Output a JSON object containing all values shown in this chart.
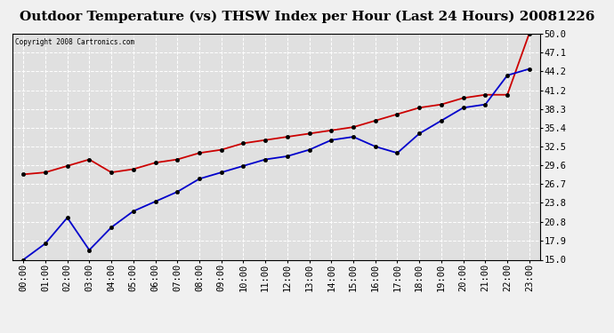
{
  "title": "Outdoor Temperature (vs) THSW Index per Hour (Last 24 Hours) 20081226",
  "copyright": "Copyright 2008 Cartronics.com",
  "hours": [
    "00:00",
    "01:00",
    "02:00",
    "03:00",
    "04:00",
    "05:00",
    "06:00",
    "07:00",
    "08:00",
    "09:00",
    "10:00",
    "11:00",
    "12:00",
    "13:00",
    "14:00",
    "15:00",
    "16:00",
    "17:00",
    "18:00",
    "19:00",
    "20:00",
    "21:00",
    "22:00",
    "23:00"
  ],
  "temp": [
    15.0,
    17.5,
    21.5,
    16.5,
    20.0,
    22.5,
    24.0,
    25.5,
    27.5,
    28.5,
    29.5,
    30.5,
    31.0,
    32.0,
    33.5,
    34.0,
    32.5,
    31.5,
    34.5,
    36.5,
    38.5,
    39.0,
    43.5,
    44.5
  ],
  "thsw": [
    28.2,
    28.5,
    29.5,
    30.5,
    28.5,
    29.0,
    30.0,
    30.5,
    31.5,
    32.0,
    33.0,
    33.5,
    34.0,
    34.5,
    35.0,
    35.5,
    36.5,
    37.5,
    38.5,
    39.0,
    40.0,
    40.5,
    40.5,
    50.0
  ],
  "temp_color": "#0000cc",
  "thsw_color": "#cc0000",
  "ylim": [
    15.0,
    50.0
  ],
  "yticks": [
    15.0,
    17.9,
    20.8,
    23.8,
    26.7,
    29.6,
    32.5,
    35.4,
    38.3,
    41.2,
    44.2,
    47.1,
    50.0
  ],
  "background_color": "#f0f0f0",
  "plot_bg_color": "#e0e0e0",
  "grid_color": "#ffffff",
  "title_fontsize": 11,
  "tick_fontsize": 7.5
}
